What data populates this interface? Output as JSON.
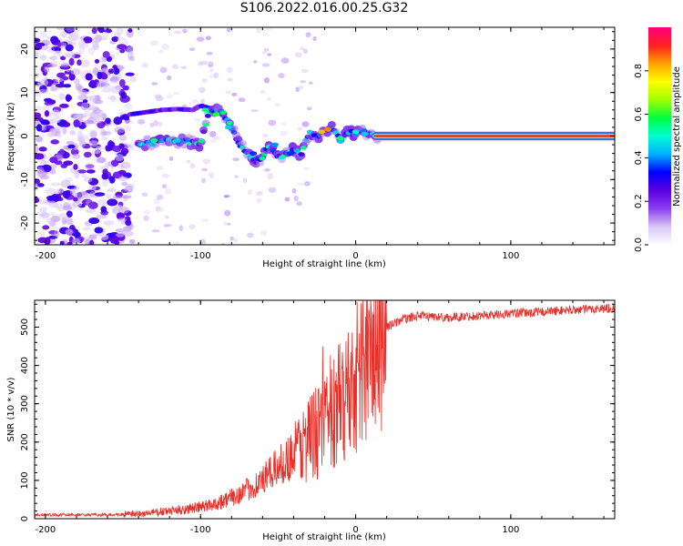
{
  "title": "S106.2022.016.00.25.G32",
  "chart_data": [
    {
      "type": "heatmap",
      "xlabel": "Height of straight line (km)",
      "ylabel": "Frequency (Hz)",
      "xlim": [
        -207,
        167
      ],
      "ylim": [
        -25,
        25
      ],
      "xticks": [
        -200,
        -100,
        0,
        100
      ],
      "yticks": [
        -20,
        -10,
        0,
        10,
        20
      ],
      "colorbar": {
        "label": "Normalized spectral amplitude",
        "range": [
          0,
          1
        ],
        "ticks": [
          0.0,
          0.2,
          0.4,
          0.6,
          0.8
        ],
        "colormap": [
          "#ffffff",
          "#d9c6f5",
          "#8a3ff0",
          "#5a00e0",
          "#0000ff",
          "#00b0ff",
          "#00ffd0",
          "#00ff40",
          "#a0ff00",
          "#ffff00",
          "#ffa000",
          "#ff2020",
          "#ff0080"
        ]
      },
      "grid": false,
      "ridge": {
        "x": [
          -140,
          -130,
          -120,
          -110,
          -100,
          -95,
          -90,
          -85,
          -80,
          -75,
          -70,
          -65,
          -60,
          -55,
          -50,
          -45,
          -40,
          -35,
          -30,
          -25,
          -20,
          -15,
          -10,
          -5,
          0,
          5,
          10,
          15,
          167
        ],
        "y": [
          -2,
          -1.5,
          -1,
          -1,
          -2,
          5,
          6,
          5,
          2,
          -2,
          -4,
          -6,
          -5,
          -2,
          -5,
          -4,
          -3,
          -4,
          1,
          0,
          1,
          2,
          -1,
          1,
          0.5,
          1,
          0.5,
          0,
          0
        ]
      },
      "upper_branch": {
        "x": [
          -145,
          -135,
          -125,
          -115,
          -105,
          -100,
          -95,
          -90
        ],
        "y": [
          5,
          5.5,
          6,
          6.2,
          6,
          7,
          6.5,
          5
        ]
      }
    },
    {
      "type": "line",
      "xlabel": "Height of straight line (km)",
      "ylabel": "SNR (10 * v/v)",
      "xlim": [
        -207,
        167
      ],
      "ylim": [
        0,
        570
      ],
      "xticks": [
        -200,
        -100,
        0,
        100
      ],
      "yticks": [
        0,
        100,
        200,
        300,
        400,
        500
      ],
      "color": "#e8302a",
      "series_envelope": {
        "x": [
          -207,
          -180,
          -160,
          -140,
          -120,
          -100,
          -90,
          -80,
          -70,
          -60,
          -50,
          -40,
          -30,
          -20,
          -10,
          0,
          10,
          20,
          30,
          40,
          60,
          80,
          100,
          120,
          140,
          167
        ],
        "y": [
          10,
          10,
          10,
          12,
          20,
          30,
          40,
          55,
          75,
          100,
          135,
          170,
          210,
          240,
          300,
          370,
          430,
          500,
          520,
          530,
          525,
          530,
          535,
          540,
          545,
          550
        ]
      }
    }
  ]
}
